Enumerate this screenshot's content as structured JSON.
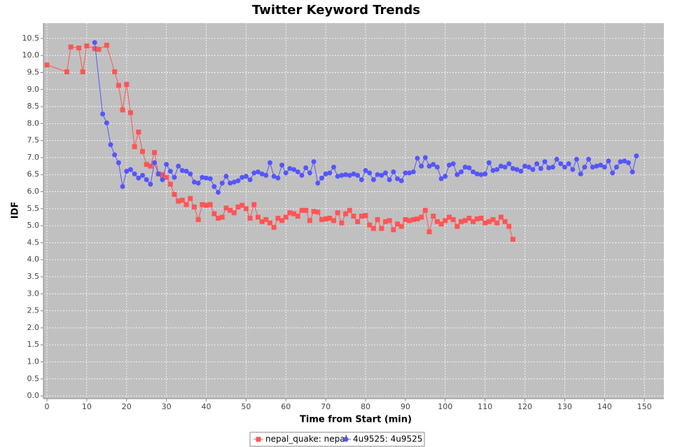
{
  "chart_data": {
    "type": "line",
    "title": "Twitter Keyword Trends",
    "x_label": "Time from Start (min)",
    "y_label": "IDF",
    "xlim": [
      -0.88,
      154.9
    ],
    "ylim": [
      -0.08,
      10.95
    ],
    "xticks": [
      0,
      10,
      20,
      30,
      40,
      50,
      60,
      70,
      80,
      90,
      100,
      110,
      120,
      130,
      140,
      150
    ],
    "yticks": [
      {
        "value": 0,
        "label": "0.0"
      },
      0.5,
      {
        "value": 1,
        "label": "1.0"
      },
      1.5,
      {
        "value": 2,
        "label": "2.0"
      },
      2.5,
      {
        "value": 3,
        "label": "3.0"
      },
      3.5,
      {
        "value": 4,
        "label": "4.0"
      },
      4.5,
      {
        "value": 5,
        "label": "5.0"
      },
      5.5,
      {
        "value": 6,
        "label": "6.0"
      },
      6.5,
      {
        "value": 7,
        "label": "7.0"
      },
      7.5,
      {
        "value": 8,
        "label": "8.0"
      },
      8.5,
      {
        "value": 9,
        "label": "9.0"
      },
      9.5,
      {
        "value": 10,
        "label": "10.0"
      },
      10.5
    ],
    "grid": true,
    "series": [
      {
        "name": "nepal_quake: nepal",
        "color": "#ff5555",
        "marker": "square",
        "x": [
          0,
          5,
          6,
          8,
          9,
          10,
          12,
          13,
          15,
          17,
          18,
          19,
          20,
          21,
          22,
          23,
          24,
          25,
          26,
          27,
          28,
          29,
          30,
          31,
          32,
          33,
          34,
          35,
          36,
          37,
          38,
          39,
          40,
          41,
          42,
          43,
          44,
          45,
          46,
          47,
          48,
          49,
          50,
          51,
          52,
          53,
          54,
          55,
          56,
          57,
          58,
          59,
          60,
          61,
          62,
          63,
          64,
          65,
          66,
          67,
          68,
          69,
          70,
          71,
          72,
          73,
          74,
          75,
          76,
          77,
          78,
          79,
          80,
          81,
          82,
          83,
          84,
          85,
          86,
          87,
          88,
          89,
          90,
          91,
          92,
          93,
          94,
          95,
          96,
          97,
          98,
          99,
          100,
          101,
          102,
          103,
          104,
          105,
          106,
          107,
          108,
          109,
          110,
          111,
          112,
          113,
          114,
          115,
          116,
          117
        ],
        "values": [
          9.72,
          9.52,
          10.25,
          10.22,
          9.52,
          10.28,
          10.2,
          10.18,
          10.3,
          9.52,
          9.12,
          8.4,
          9.15,
          8.32,
          7.32,
          7.75,
          7.18,
          6.8,
          6.75,
          7.15,
          6.52,
          6.5,
          6.42,
          6.22,
          5.92,
          5.72,
          5.75,
          5.62,
          5.8,
          5.55,
          5.18,
          5.62,
          5.6,
          5.62,
          5.35,
          5.22,
          5.25,
          5.52,
          5.45,
          5.38,
          5.55,
          5.6,
          5.5,
          5.22,
          5.62,
          5.25,
          5.12,
          5.18,
          5.08,
          4.95,
          5.22,
          5.15,
          5.25,
          5.38,
          5.35,
          5.28,
          5.45,
          5.45,
          5.15,
          5.42,
          5.4,
          5.18,
          5.2,
          5.22,
          5.15,
          5.38,
          5.08,
          5.35,
          5.45,
          5.28,
          5.12,
          5.28,
          5.3,
          5.02,
          4.92,
          5.18,
          4.92,
          5.12,
          5.15,
          4.88,
          5.05,
          4.98,
          5.18,
          5.15,
          5.18,
          5.2,
          5.25,
          5.45,
          4.82,
          5.28,
          5.12,
          5.05,
          5.15,
          5.25,
          5.18,
          4.98,
          5.12,
          5.15,
          5.22,
          5.12,
          5.2,
          5.22,
          5.08,
          5.12,
          5.18,
          5.08,
          5.25,
          5.12,
          4.98,
          4.6
        ]
      },
      {
        "name": "4u9525: 4u9525",
        "color": "#5555ff",
        "marker": "circle",
        "x": [
          12,
          14,
          15,
          16,
          17,
          18,
          19,
          20,
          21,
          22,
          23,
          24,
          25,
          26,
          27,
          28,
          29,
          30,
          31,
          32,
          33,
          34,
          35,
          36,
          37,
          38,
          39,
          40,
          41,
          42,
          43,
          44,
          45,
          46,
          47,
          48,
          49,
          50,
          51,
          52,
          53,
          54,
          55,
          56,
          57,
          58,
          59,
          60,
          61,
          62,
          63,
          64,
          65,
          66,
          67,
          68,
          69,
          70,
          71,
          72,
          73,
          74,
          75,
          76,
          77,
          78,
          79,
          80,
          81,
          82,
          83,
          84,
          85,
          86,
          87,
          88,
          89,
          90,
          91,
          92,
          93,
          94,
          95,
          96,
          97,
          98,
          99,
          100,
          101,
          102,
          103,
          104,
          105,
          106,
          107,
          108,
          109,
          110,
          111,
          112,
          113,
          114,
          115,
          116,
          117,
          118,
          119,
          120,
          121,
          122,
          123,
          124,
          125,
          126,
          127,
          128,
          129,
          130,
          131,
          132,
          133,
          134,
          135,
          136,
          137,
          138,
          139,
          140,
          141,
          142,
          143,
          144,
          145,
          146,
          147,
          148
        ],
        "values": [
          10.38,
          8.28,
          8.02,
          7.38,
          7.08,
          6.85,
          6.15,
          6.6,
          6.65,
          6.52,
          6.4,
          6.48,
          6.35,
          6.22,
          6.85,
          6.52,
          6.35,
          6.8,
          6.6,
          6.42,
          6.75,
          6.62,
          6.6,
          6.52,
          6.28,
          6.25,
          6.42,
          6.4,
          6.38,
          6.15,
          5.98,
          6.25,
          6.45,
          6.25,
          6.28,
          6.32,
          6.42,
          6.45,
          6.35,
          6.55,
          6.58,
          6.52,
          6.48,
          6.85,
          6.45,
          6.4,
          6.78,
          6.55,
          6.68,
          6.65,
          6.58,
          6.48,
          6.7,
          6.55,
          6.88,
          6.25,
          6.4,
          6.52,
          6.55,
          6.72,
          6.45,
          6.48,
          6.5,
          6.48,
          6.52,
          6.48,
          6.35,
          6.62,
          6.55,
          6.35,
          6.5,
          6.48,
          6.55,
          6.35,
          6.58,
          6.38,
          6.32,
          6.55,
          6.55,
          6.58,
          6.98,
          6.75,
          7.0,
          6.75,
          6.8,
          6.72,
          6.38,
          6.45,
          6.78,
          6.82,
          6.5,
          6.58,
          6.72,
          6.7,
          6.58,
          6.52,
          6.5,
          6.52,
          6.85,
          6.62,
          6.65,
          6.75,
          6.72,
          6.82,
          6.68,
          6.65,
          6.6,
          6.75,
          6.72,
          6.65,
          6.82,
          6.68,
          6.88,
          6.7,
          6.72,
          6.95,
          6.82,
          6.72,
          6.82,
          6.65,
          6.95,
          6.52,
          6.72,
          6.95,
          6.72,
          6.75,
          6.78,
          6.72,
          6.9,
          6.55,
          6.72,
          6.88,
          6.9,
          6.85,
          6.58,
          7.05
        ]
      }
    ]
  }
}
